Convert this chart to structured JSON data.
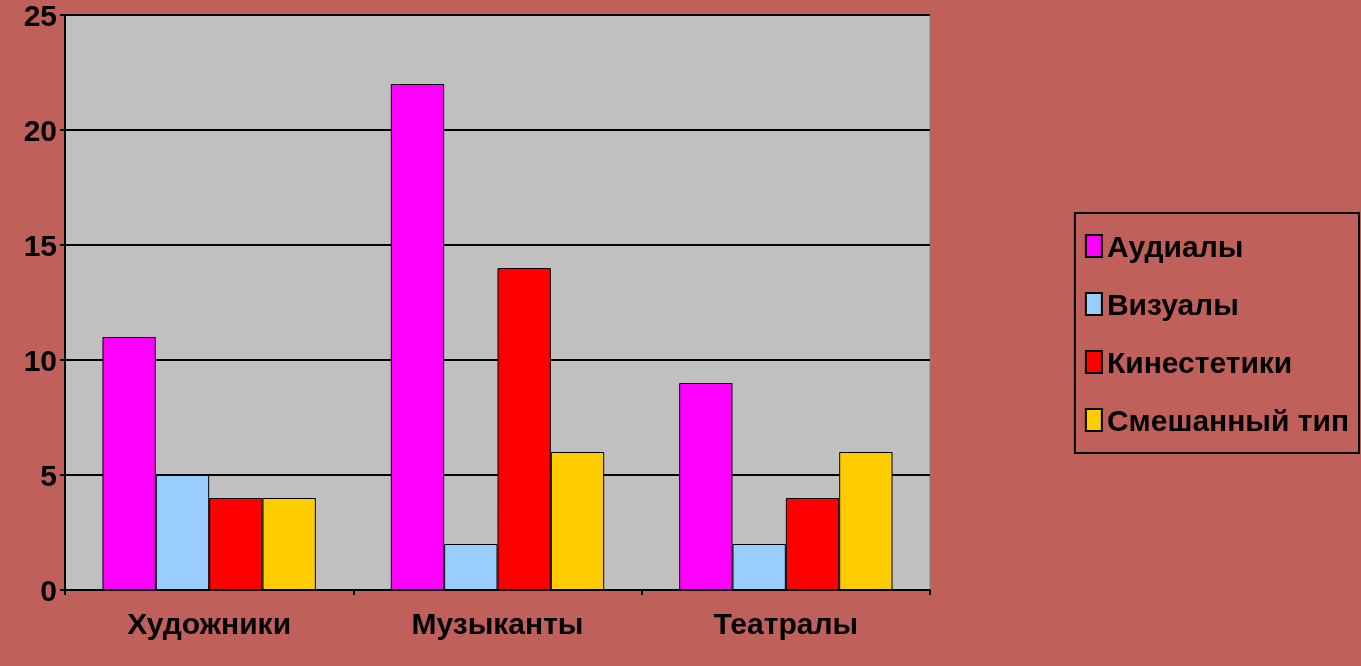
{
  "chart_data": {
    "type": "bar",
    "categories": [
      "Художники",
      "Музыканты",
      "Театралы"
    ],
    "series": [
      {
        "name": "Аудиалы",
        "color": "#ff00ff",
        "values": [
          11,
          22,
          9
        ]
      },
      {
        "name": "Визуалы",
        "color": "#99ccff",
        "values": [
          5,
          2,
          2
        ]
      },
      {
        "name": "Кинестетики",
        "color": "#ff0000",
        "values": [
          4,
          14,
          4
        ]
      },
      {
        "name": "Смешанный тип",
        "color": "#ffcc00",
        "values": [
          4,
          6,
          6
        ]
      }
    ],
    "ylim": [
      0,
      25
    ],
    "yticks": [
      0,
      5,
      10,
      15,
      20,
      25
    ],
    "grid": "y",
    "legend": "right"
  }
}
